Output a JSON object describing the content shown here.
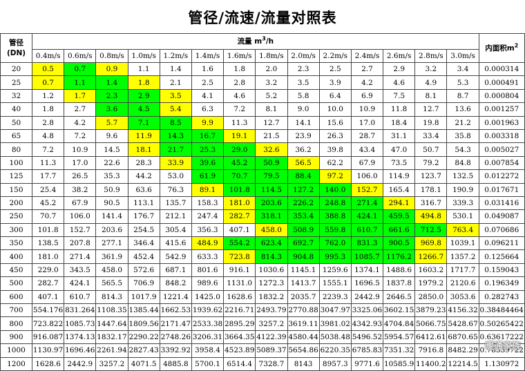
{
  "title": "管径/流速/流量对照表",
  "header": {
    "pipe_label": "管径",
    "dn_label": "(DN)",
    "flow_label": "流量",
    "flow_unit_base": "m",
    "flow_unit_sup": "3",
    "flow_unit_tail": "/h",
    "area_label": "内面积m",
    "area_sup": "2"
  },
  "speeds": [
    "0.4m/s",
    "0.6m/s",
    "0.8m/s",
    "1.0m/s",
    "1.2m/s",
    "1.4m/s",
    "1.6m/s",
    "1.8m/s",
    "2.0m/s",
    "2.2m/s",
    "2.4m/s",
    "2.6m/s",
    "2.8m/s",
    "3.0m/s"
  ],
  "colors": {
    "yellow": "#ffff00",
    "green": "#00ff00",
    "white": "#ffffff"
  },
  "rows": [
    {
      "dn": "20",
      "v": [
        "0.5",
        "0.7",
        "0.9",
        "1.1",
        "1.4",
        "1.6",
        "1.8",
        "2.0",
        "2.3",
        "2.5",
        "2.7",
        "2.9",
        "3.2",
        "3.4"
      ],
      "c": "YGYWWWWWWWWWWW",
      "area": "0.000314"
    },
    {
      "dn": "25",
      "v": [
        "0.7",
        "1.1",
        "1.4",
        "1.8",
        "2.1",
        "2.5",
        "2.8",
        "3.2",
        "3.5",
        "3.9",
        "4.2",
        "4.6",
        "4.9",
        "5.3"
      ],
      "c": "YGGYWWWWWWWWWW",
      "area": "0.000491"
    },
    {
      "dn": "32",
      "v": [
        "1.2",
        "1.7",
        "2.3",
        "2.9",
        "3.5",
        "4.1",
        "4.6",
        "5.2",
        "5.8",
        "6.4",
        "6.9",
        "7.5",
        "8.1",
        "8.7"
      ],
      "c": "WYGGYWWWWWWWWW",
      "area": "0.000804"
    },
    {
      "dn": "40",
      "v": [
        "1.8",
        "2.7",
        "3.6",
        "4.5",
        "5.4",
        "6.3",
        "7.2",
        "8.1",
        "9.0",
        "10.0",
        "10.9",
        "11.8",
        "12.7",
        "13.6"
      ],
      "c": "WWGGYWWWWWWWWW",
      "area": "0.001257"
    },
    {
      "dn": "50",
      "v": [
        "2.8",
        "4.2",
        "5.7",
        "7.1",
        "8.5",
        "9.9",
        "11.3",
        "12.7",
        "14.1",
        "15.6",
        "17.0",
        "18.4",
        "19.8",
        "21.2"
      ],
      "c": "WWYGGYWWWWWWWW",
      "area": "0.001963"
    },
    {
      "dn": "65",
      "v": [
        "4.8",
        "7.2",
        "9.6",
        "11.9",
        "14.3",
        "16.7",
        "19.1",
        "21.5",
        "23.9",
        "26.3",
        "28.7",
        "31.1",
        "33.4",
        "35.8"
      ],
      "c": "WWWYGGYWWWWWWW",
      "area": "0.003318"
    },
    {
      "dn": "80",
      "v": [
        "7.2",
        "10.9",
        "14.5",
        "18.1",
        "21.7",
        "25.3",
        "29.0",
        "32.6",
        "36.2",
        "39.8",
        "43.4",
        "47.0",
        "50.7",
        "54.3"
      ],
      "c": "WWWYGGGYWWWWWW",
      "area": "0.005027"
    },
    {
      "dn": "100",
      "v": [
        "11.3",
        "17.0",
        "22.6",
        "28.3",
        "33.9",
        "39.6",
        "45.2",
        "50.9",
        "56.5",
        "62.2",
        "67.9",
        "73.5",
        "79.2",
        "84.8"
      ],
      "c": "WWWWYGGGYWWWWW",
      "area": "0.007854"
    },
    {
      "dn": "125",
      "v": [
        "17.7",
        "26.5",
        "35.3",
        "44.2",
        "53.0",
        "61.9",
        "70.7",
        "79.5",
        "88.4",
        "97.2",
        "106.0",
        "114.9",
        "123.7",
        "132.5"
      ],
      "c": "WWWWWGGGGYWWWW",
      "area": "0.012272"
    },
    {
      "dn": "150",
      "v": [
        "25.4",
        "38.2",
        "50.9",
        "63.6",
        "76.3",
        "89.1",
        "101.8",
        "114.5",
        "127.2",
        "140.0",
        "152.7",
        "165.4",
        "178.1",
        "190.9"
      ],
      "c": "WWWWWYGGGGYWWW",
      "area": "0.017671"
    },
    {
      "dn": "200",
      "v": [
        "45.2",
        "67.9",
        "90.5",
        "113.1",
        "135.7",
        "158.3",
        "181.0",
        "203.6",
        "226.2",
        "248.8",
        "271.4",
        "294.1",
        "316.7",
        "339.3"
      ],
      "c": "WWWWWWYGGGGYWW",
      "area": "0.031416"
    },
    {
      "dn": "250",
      "v": [
        "70.7",
        "106.0",
        "141.4",
        "176.7",
        "212.1",
        "247.4",
        "282.7",
        "318.1",
        "353.4",
        "388.8",
        "424.1",
        "459.5",
        "494.8",
        "530.1"
      ],
      "c": "WWWWWWYGGGGGYW",
      "area": "0.049087"
    },
    {
      "dn": "300",
      "v": [
        "101.8",
        "152.7",
        "203.6",
        "254.5",
        "305.4",
        "356.3",
        "407.1",
        "458.0",
        "508.9",
        "559.8",
        "610.7",
        "661.6",
        "712.5",
        "763.4"
      ],
      "c": "WWWWWWWYGGGGGY",
      "area": "0.070686"
    },
    {
      "dn": "350",
      "v": [
        "138.5",
        "207.8",
        "277.1",
        "346.4",
        "415.6",
        "484.9",
        "554.2",
        "623.4",
        "692.7",
        "762.0",
        "831.3",
        "900.5",
        "969.8",
        "1039.1"
      ],
      "c": "WWWWWYGGGGGGYW",
      "area": "0.096211"
    },
    {
      "dn": "400",
      "v": [
        "181.0",
        "271.4",
        "361.9",
        "452.4",
        "542.9",
        "633.3",
        "723.8",
        "814.3",
        "904.8",
        "995.3",
        "1085.7",
        "1176.2",
        "1266.7",
        "1357.2"
      ],
      "c": "WWWWWWYGGGGGYW",
      "area": "0.125664"
    },
    {
      "dn": "450",
      "v": [
        "229.0",
        "343.5",
        "458.0",
        "572.6",
        "687.1",
        "801.6",
        "916.1",
        "1030.6",
        "1145.1",
        "1259.6",
        "1374.1",
        "1488.6",
        "1603.2",
        "1717.7"
      ],
      "c": "WWWWWWWWWWWWWW",
      "area": "0.159043"
    },
    {
      "dn": "500",
      "v": [
        "282.7",
        "424.1",
        "565.5",
        "706.9",
        "848.2",
        "989.6",
        "1131.0",
        "1272.3",
        "1413.7",
        "1555.1",
        "1696.5",
        "1837.8",
        "1979.2",
        "2120.6"
      ],
      "c": "WWWWWWWWWWWWWW",
      "area": "0.196349"
    },
    {
      "dn": "600",
      "v": [
        "407.1",
        "610.7",
        "814.3",
        "1017.9",
        "1221.4",
        "1425.0",
        "1628.6",
        "1832.2",
        "2035.7",
        "2239.3",
        "2442.9",
        "2646.5",
        "2850.0",
        "3053.6"
      ],
      "c": "WWWWWWWWWWWWWW",
      "area": "0.282743"
    },
    {
      "dn": "700",
      "v": [
        "554.176",
        "831.264",
        "1108.35",
        "1385.44",
        "1662.53",
        "1939.62",
        "2216.71",
        "2493.79",
        "2770.88",
        "3047.97",
        "3325.06",
        "3602.15",
        "3879.23",
        "4156.32"
      ],
      "c": "WWWWWWWWWWWWWW",
      "area": "0.38484464"
    },
    {
      "dn": "800",
      "v": [
        "723.822",
        "1085.73",
        "1447.64",
        "1809.56",
        "2171.47",
        "2533.38",
        "2895.29",
        "3257.2",
        "3619.11",
        "3981.02",
        "4342.93",
        "4704.84",
        "5066.75",
        "5428.67"
      ],
      "c": "WWWWWWWWWWWWWW",
      "area": "0.50265422"
    },
    {
      "dn": "900",
      "v": [
        "916.087",
        "1374.13",
        "1832.17",
        "2290.22",
        "2748.26",
        "3206.31",
        "3664.35",
        "4122.39",
        "4580.44",
        "5038.48",
        "5496.52",
        "5954.57",
        "6412.61",
        "6870.65"
      ],
      "c": "WWWWWWWWWWWWWW",
      "area": "0.63617222"
    },
    {
      "dn": "1000",
      "v": [
        "1130.97",
        "1696.46",
        "2261.94",
        "2827.43",
        "3392.92",
        "3958.4",
        "4523.89",
        "5089.37",
        "5654.86",
        "6220.35",
        "6785.83",
        "7351.32",
        "7916.8",
        "8482.29"
      ],
      "c": "WWWWWWWWWWWWWW",
      "area": "0.78539722"
    },
    {
      "dn": "1200",
      "v": [
        "1628.6",
        "2442.9",
        "3257.2",
        "4071.5",
        "4885.8",
        "5700.1",
        "6514.4",
        "7328.7",
        "8143",
        "8957.3",
        "9771.6",
        "10585.9",
        "11400.2",
        "12214.5"
      ],
      "c": "WWWWWWWWWWWWWW",
      "area": "1.130972"
    }
  ],
  "watermark": "暖通家族"
}
